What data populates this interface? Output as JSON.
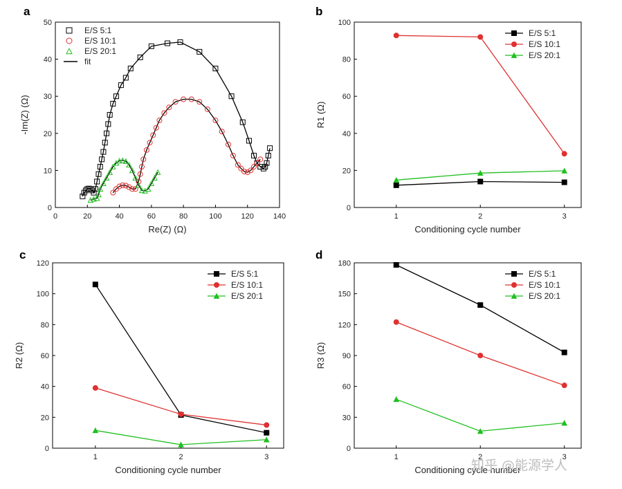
{
  "watermark": "知乎 @能源学人",
  "chart_data": [
    {
      "panel": "a",
      "type": "scatter",
      "xlabel": "Re(Z) (Ω)",
      "ylabel": "-Im(Z) (Ω)",
      "xlim": [
        0,
        140
      ],
      "ylim": [
        0,
        50
      ],
      "xticks": [
        0,
        20,
        40,
        60,
        80,
        100,
        120,
        140
      ],
      "yticks": [
        0,
        10,
        20,
        30,
        40,
        50
      ],
      "legend_position": "top-left",
      "grid": false,
      "series": [
        {
          "name": "E/S 5:1",
          "marker": "square",
          "color": "#000000",
          "points": [
            [
              17,
              3
            ],
            [
              18,
              4
            ],
            [
              19,
              4.6
            ],
            [
              20,
              5
            ],
            [
              21,
              5.1
            ],
            [
              22,
              5
            ],
            [
              23,
              4.6
            ],
            [
              24,
              4
            ],
            [
              25,
              5
            ],
            [
              26,
              7
            ],
            [
              27,
              9
            ],
            [
              28,
              11
            ],
            [
              29,
              13
            ],
            [
              30,
              15
            ],
            [
              31,
              17.5
            ],
            [
              32,
              20
            ],
            [
              33,
              22.5
            ],
            [
              34,
              25
            ],
            [
              36,
              28
            ],
            [
              38,
              30
            ],
            [
              41,
              33
            ],
            [
              44,
              35
            ],
            [
              47,
              37.5
            ],
            [
              53,
              40.5
            ],
            [
              60,
              43.5
            ],
            [
              70,
              44.3
            ],
            [
              78,
              44.6
            ],
            [
              90,
              42
            ],
            [
              100,
              37.5
            ],
            [
              110,
              30
            ],
            [
              117,
              23
            ],
            [
              121,
              18
            ],
            [
              124,
              14
            ],
            [
              126,
              12
            ],
            [
              128,
              11
            ],
            [
              130,
              10.5
            ],
            [
              131,
              11
            ],
            [
              132,
              12
            ],
            [
              133,
              14
            ],
            [
              134,
              16
            ]
          ]
        },
        {
          "name": "E/S 10:1",
          "marker": "circle",
          "color": "#e03030",
          "points": [
            [
              36,
              4
            ],
            [
              38,
              5
            ],
            [
              40,
              5.7
            ],
            [
              42,
              6
            ],
            [
              44,
              5.9
            ],
            [
              46,
              5.5
            ],
            [
              48,
              5
            ],
            [
              50,
              5
            ],
            [
              52,
              7
            ],
            [
              53,
              9
            ],
            [
              54,
              11
            ],
            [
              55,
              13
            ],
            [
              57,
              15.5
            ],
            [
              59,
              17.5
            ],
            [
              61,
              19.5
            ],
            [
              63,
              21.5
            ],
            [
              65,
              23.5
            ],
            [
              68,
              25.5
            ],
            [
              71,
              27
            ],
            [
              75,
              28.5
            ],
            [
              80,
              29.2
            ],
            [
              85,
              29.2
            ],
            [
              90,
              28.5
            ],
            [
              95,
              26.5
            ],
            [
              100,
              23.5
            ],
            [
              104,
              20.5
            ],
            [
              108,
              17
            ],
            [
              111,
              14
            ],
            [
              114,
              11.5
            ],
            [
              116,
              10.5
            ],
            [
              118,
              9.7
            ],
            [
              120,
              9.5
            ],
            [
              122,
              10
            ],
            [
              124,
              11
            ],
            [
              126,
              12
            ],
            [
              128,
              13
            ]
          ]
        },
        {
          "name": "E/S 20:1",
          "marker": "triangle",
          "color": "#1fbf1f",
          "points": [
            [
              22,
              2
            ],
            [
              24,
              2.3
            ],
            [
              26,
              2.5
            ],
            [
              27,
              3.5
            ],
            [
              28,
              5
            ],
            [
              30,
              6.5
            ],
            [
              32,
              8
            ],
            [
              34,
              9.5
            ],
            [
              36,
              11
            ],
            [
              38,
              12
            ],
            [
              40,
              12.6
            ],
            [
              42,
              12.7
            ],
            [
              44,
              12.5
            ],
            [
              46,
              11.5
            ],
            [
              48,
              10
            ],
            [
              50,
              8
            ],
            [
              52,
              6
            ],
            [
              54,
              4.6
            ],
            [
              56,
              4.5
            ],
            [
              58,
              5
            ],
            [
              60,
              6.5
            ],
            [
              62,
              8
            ],
            [
              64,
              9.5
            ]
          ]
        }
      ],
      "fit_label": "fit",
      "fit_color": "#000000"
    },
    {
      "panel": "b",
      "type": "line",
      "xlabel": "Conditioning cycle number",
      "ylabel": "R1 (Ω)",
      "x": [
        1,
        2,
        3
      ],
      "xlim": [
        0.5,
        3.2
      ],
      "ylim": [
        0,
        100
      ],
      "yticks": [
        0,
        20,
        40,
        60,
        80,
        100
      ],
      "legend_position": "top-right",
      "grid": false,
      "series": [
        {
          "name": "E/S 5:1",
          "color": "#000000",
          "marker": "square",
          "values": [
            12,
            14,
            13.6
          ]
        },
        {
          "name": "E/S 10:1",
          "color": "#e03030",
          "marker": "circle",
          "values": [
            92.8,
            92,
            29
          ]
        },
        {
          "name": "E/S 20:1",
          "color": "#1fbf1f",
          "marker": "triangle",
          "values": [
            14.8,
            18.6,
            19.8
          ]
        }
      ]
    },
    {
      "panel": "c",
      "type": "line",
      "xlabel": "Conditioning cycle number",
      "ylabel": "R2 (Ω)",
      "x": [
        1,
        2,
        3
      ],
      "xlim": [
        0.5,
        3.2
      ],
      "ylim": [
        0,
        120
      ],
      "yticks": [
        0,
        20,
        40,
        60,
        80,
        100,
        120
      ],
      "legend_position": "top-right",
      "grid": false,
      "series": [
        {
          "name": "E/S 5:1",
          "color": "#000000",
          "marker": "square",
          "values": [
            106,
            21.5,
            10
          ]
        },
        {
          "name": "E/S 10:1",
          "color": "#e03030",
          "marker": "circle",
          "values": [
            39,
            22,
            15
          ]
        },
        {
          "name": "E/S 20:1",
          "color": "#1fbf1f",
          "marker": "triangle",
          "values": [
            11.5,
            2.3,
            5.5
          ]
        }
      ]
    },
    {
      "panel": "d",
      "type": "line",
      "xlabel": "Conditioning cycle number",
      "ylabel": "R3 (Ω)",
      "x": [
        1,
        2,
        3
      ],
      "xlim": [
        0.5,
        3.2
      ],
      "ylim": [
        0,
        180
      ],
      "yticks": [
        0,
        30,
        60,
        90,
        120,
        150,
        180
      ],
      "legend_position": "top-right",
      "grid": false,
      "series": [
        {
          "name": "E/S 5:1",
          "color": "#000000",
          "marker": "square",
          "values": [
            178,
            139,
            93
          ]
        },
        {
          "name": "E/S 10:1",
          "color": "#e03030",
          "marker": "circle",
          "values": [
            122.5,
            90,
            61
          ]
        },
        {
          "name": "E/S 20:1",
          "color": "#1fbf1f",
          "marker": "triangle",
          "values": [
            47.5,
            16.5,
            24.5
          ]
        }
      ]
    }
  ]
}
